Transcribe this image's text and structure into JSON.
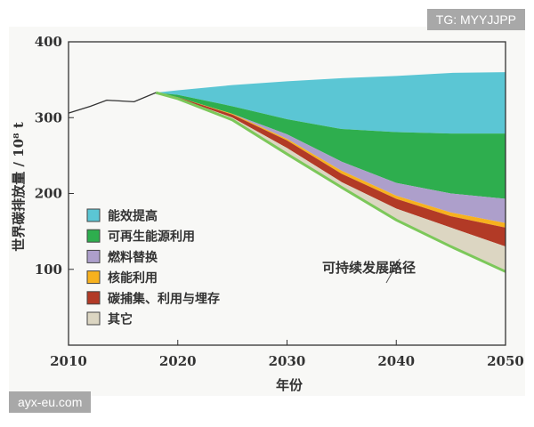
{
  "watermarks": {
    "top": "TG: MYYJJPP",
    "bottom": "ayx-eu.com"
  },
  "chart_data": {
    "type": "area",
    "stacked": true,
    "xlabel": "年份",
    "ylabel": "世界碳排放量 / 10⁸ t",
    "xlim": [
      2010,
      2050
    ],
    "ylim": [
      0,
      400
    ],
    "xticks": [
      2010,
      2020,
      2030,
      2040,
      2050
    ],
    "yticks": [
      100,
      200,
      300,
      400
    ],
    "grid": false,
    "legend_position": "lower-left",
    "historical": {
      "x": [
        2010,
        2012,
        2013.5,
        2016,
        2018
      ],
      "y": [
        306,
        315,
        323,
        321,
        333
      ]
    },
    "x": [
      2018,
      2020,
      2025,
      2030,
      2035,
      2040,
      2045,
      2050
    ],
    "baseline": [
      333,
      336,
      343,
      348,
      352,
      355,
      359,
      360
    ],
    "series": [
      {
        "name": "能效提高",
        "color": "#5bc6d4",
        "values": [
          0,
          6,
          28,
          50,
          67,
          74,
          80,
          81
        ]
      },
      {
        "name": "可再生能源利用",
        "color": "#2eae4e",
        "values": [
          0,
          3,
          10,
          20,
          43,
          67,
          79,
          86
        ]
      },
      {
        "name": "燃料替换",
        "color": "#ad9fcb",
        "values": [
          0,
          0,
          0,
          6,
          12,
          17,
          25,
          32
        ]
      },
      {
        "name": "核能利用",
        "color": "#f7b11e",
        "values": [
          0,
          0,
          1,
          2,
          4,
          4,
          5,
          6
        ]
      },
      {
        "name": "碳捕集、利用与埋存",
        "color": "#b23a26",
        "values": [
          0,
          1,
          4,
          10,
          11,
          13,
          15,
          25
        ]
      },
      {
        "name": "其它",
        "color": "#dcd6c2",
        "values": [
          0,
          1,
          3,
          8,
          7,
          15,
          25,
          33
        ]
      }
    ],
    "pathway": {
      "label": "可持续发展路径",
      "color": "#7cc85a",
      "values": [
        333,
        325,
        297,
        252,
        208,
        165,
        130,
        97
      ]
    }
  }
}
